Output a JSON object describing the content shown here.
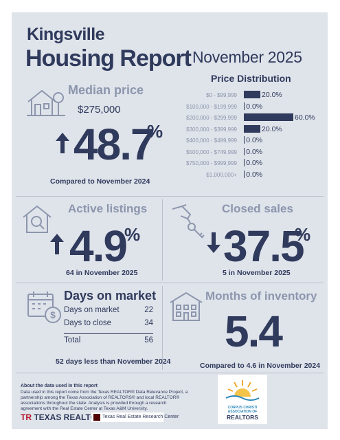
{
  "header": {
    "city": "Kingsville",
    "title": "Housing Report",
    "month": "November 2025"
  },
  "median_price": {
    "label": "Median price",
    "value": "$275,000",
    "change": "48.7",
    "pct_sign": "%",
    "direction": "up",
    "note": "Compared to November 2024"
  },
  "price_distribution": {
    "title": "Price Distribution",
    "ranges": [
      {
        "label": "$0 - $99,999",
        "value": 20.0,
        "text": "20.0%"
      },
      {
        "label": "$100,000 - $199,999",
        "value": 0.0,
        "text": "0.0%"
      },
      {
        "label": "$200,000 - $299,999",
        "value": 60.0,
        "text": "60.0%"
      },
      {
        "label": "$300,000 - $399,999",
        "value": 20.0,
        "text": "20.0%"
      },
      {
        "label": "$400,000 - $499,999",
        "value": 0.0,
        "text": "0.0%"
      },
      {
        "label": "$500,000 - $749,999",
        "value": 0.0,
        "text": "0.0%"
      },
      {
        "label": "$750,000 - $999,999",
        "value": 0.0,
        "text": "0.0%"
      },
      {
        "label": "$1,000,000+",
        "value": 0.0,
        "text": "0.0%"
      }
    ]
  },
  "active_listings": {
    "label": "Active listings",
    "change": "4.9",
    "pct_sign": "%",
    "direction": "up",
    "note": "64 in November 2025"
  },
  "closed_sales": {
    "label": "Closed sales",
    "change": "37.5",
    "pct_sign": "%",
    "direction": "down",
    "note": "5 in November 2025"
  },
  "days_on_market": {
    "label": "Days on market",
    "rows": [
      {
        "name": "Days on market",
        "value": "22"
      },
      {
        "name": "Days to close",
        "value": "34"
      }
    ],
    "total_label": "Total",
    "total_value": "56",
    "note": "52 days less than November 2024"
  },
  "months_inventory": {
    "label": "Months of inventory",
    "value": "5.4",
    "note": "Compared to 4.6 in November 2024"
  },
  "about": {
    "heading": "About the data used in this report",
    "text": "Data used in this report come from the Texas REALTOR® Data Relevance Project, a partnership among the Texas Association of REALTORS® and local REALTOR® associations throughout the state. Analysis is provided through a research agreement with the Real Estate Center at Texas A&M University."
  },
  "logos": {
    "texas_realtors": "TEXAS REALTORS",
    "research_center": "Texas Real Estate Research Center",
    "ccar_line1": "CORPUS CHRISTI",
    "ccar_line2": "ASSOCIATION OF",
    "ccar_line3": "REALTORS"
  },
  "colors": {
    "navy": "#2f3a5c",
    "gray": "#8c96ad",
    "background": "#dfe3ea"
  }
}
